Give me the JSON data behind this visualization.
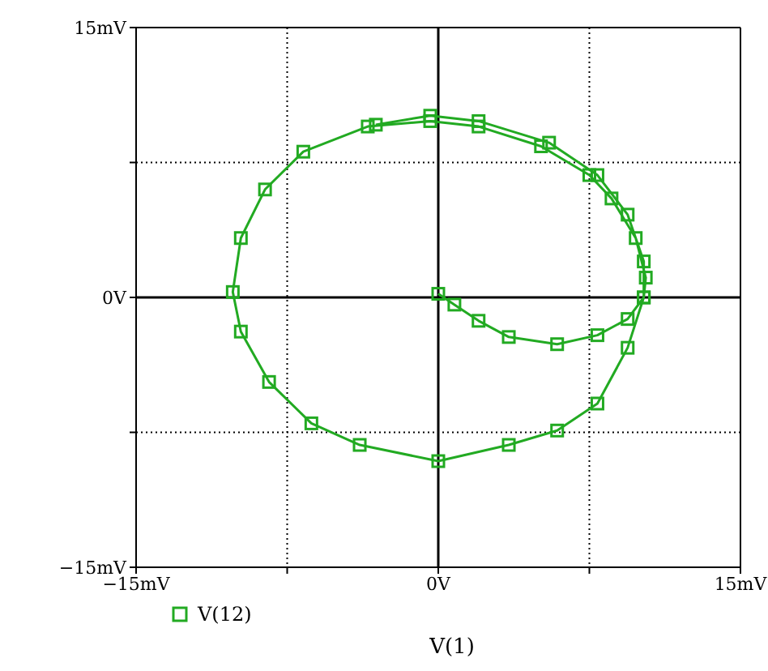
{
  "chart_data": {
    "type": "line",
    "xlabel": "V(1)",
    "xlim": [
      -15,
      15
    ],
    "xticks": [
      {
        "value": -15,
        "label": "−15mV"
      },
      {
        "value": -7.5,
        "label": null
      },
      {
        "value": 0,
        "label": "0V"
      },
      {
        "value": 7.5,
        "label": null
      },
      {
        "value": 15,
        "label": "15mV"
      }
    ],
    "ylim": [
      -15,
      15
    ],
    "yticks": [
      {
        "value": -15,
        "label": "−15mV"
      },
      {
        "value": -7.5,
        "label": null
      },
      {
        "value": 0,
        "label": "0V"
      },
      {
        "value": 7.5,
        "label": null
      },
      {
        "value": 15,
        "label": "15mV"
      }
    ],
    "grid": true,
    "legend": "bottom left",
    "marker": "square",
    "line_style": "solid",
    "series": [
      {
        "name": "V(12)",
        "color": "#22aa22",
        "x": [
          0,
          0.8,
          2.0,
          3.5,
          5.9,
          7.9,
          9.4,
          10.2,
          10.3,
          9.8,
          8.6,
          7.5,
          5.1,
          2.0,
          -0.4,
          -3.5,
          -6.7,
          -8.6,
          -9.8,
          -10.2,
          -9.8,
          -8.4,
          -6.3,
          -3.9,
          0,
          3.5,
          5.9,
          7.9,
          9.4,
          10.2,
          10.2,
          9.4,
          7.9,
          5.5,
          2.0,
          -0.4,
          -3.1
        ],
        "values": [
          0.2,
          -0.4,
          -1.3,
          -2.2,
          -2.6,
          -2.1,
          -1.2,
          0,
          1.1,
          3.3,
          5.5,
          6.8,
          8.4,
          9.5,
          9.8,
          9.5,
          8.1,
          6.0,
          3.3,
          0.3,
          -1.9,
          -4.7,
          -7.0,
          -8.2,
          -9.1,
          -8.2,
          -7.4,
          -5.9,
          -2.8,
          0,
          2.0,
          4.6,
          6.8,
          8.6,
          9.8,
          10.1,
          9.6
        ]
      }
    ]
  }
}
